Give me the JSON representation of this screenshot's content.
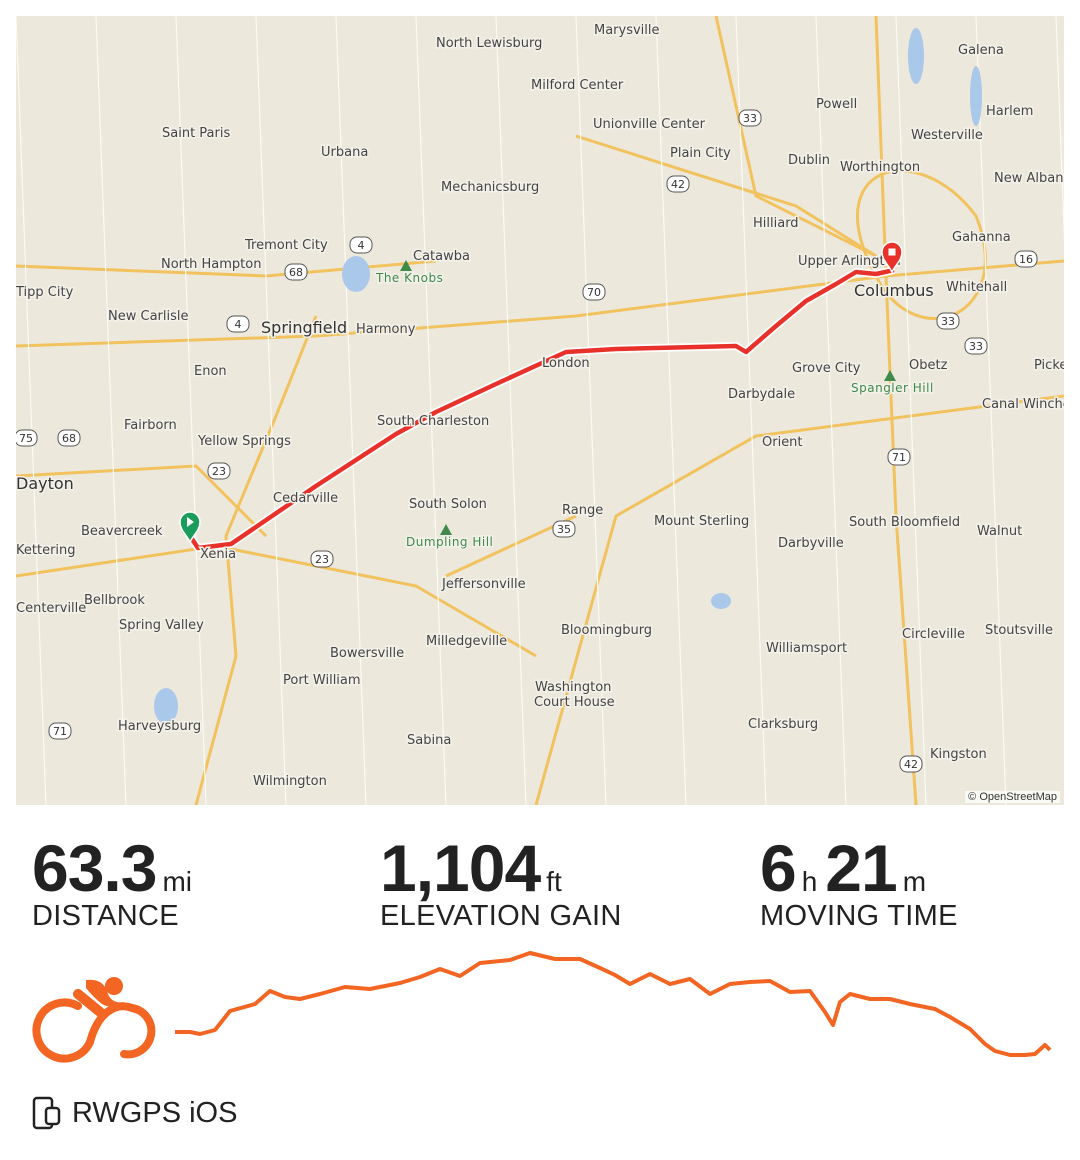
{
  "map": {
    "attribution": "© OpenStreetMap",
    "route_color": "#e8312a",
    "start_marker_color": "#1a9c5b",
    "end_marker_color": "#e8312a",
    "places": [
      "Marysville",
      "North Lewisburg",
      "Milford Center",
      "Unionville Center",
      "Galena",
      "Harlem",
      "Powell",
      "Westerville",
      "Dublin",
      "Worthington",
      "New Albany",
      "Plain City",
      "Saint Paris",
      "Urbana",
      "Mechanicsburg",
      "Hilliard",
      "Gahanna",
      "Tremont City",
      "Catawba",
      "North Hampton",
      "Upper Arlington",
      "Columbus",
      "Whitehall",
      "Tipp City",
      "New Carlisle",
      "Springfield",
      "Harmony",
      "London",
      "Grove City",
      "Obetz",
      "Enon",
      "Darbydale",
      "Fairborn",
      "Yellow Springs",
      "South Charleston",
      "Orient",
      "Canal Winchester",
      "Cedarville",
      "South Solon",
      "Range",
      "Mount Sterling",
      "Darbyville",
      "South Bloomfield",
      "Walnut",
      "Beavercreek",
      "Xenia",
      "Kettering",
      "Jeffersonville",
      "Bellbrook",
      "Centerville",
      "Spring Valley",
      "Bloomingburg",
      "Milledgeville",
      "Bowersville",
      "Williamsport",
      "Circleville",
      "Stoutsville",
      "Port William",
      "Washington",
      "Court House",
      "Harveysburg",
      "Sabina",
      "Clarksburg",
      "Kingston",
      "Wilmington",
      "Dayton",
      "Picke"
    ],
    "peaks": [
      "The Knobs",
      "Dumpling Hill",
      "Spangler Hill"
    ],
    "shields": [
      "33",
      "42",
      "4",
      "68",
      "70",
      "16",
      "33",
      "33",
      "4",
      "75",
      "68",
      "23",
      "71",
      "35",
      "23",
      "42",
      "71"
    ]
  },
  "stats": [
    {
      "value": "63.3",
      "unit": "mi",
      "label": "DISTANCE"
    },
    {
      "value": "1,104",
      "unit": "ft",
      "label": "ELEVATION GAIN"
    },
    {
      "value_h": "6",
      "unit_h": "h",
      "value_m": "21",
      "unit_m": "m",
      "label": "MOVING TIME"
    }
  ],
  "activity": {
    "icon": "cycling-icon",
    "color": "#f26522"
  },
  "profile": {
    "color": "#f26522"
  },
  "device": {
    "icon": "phone-watch-icon",
    "label": "RWGPS iOS"
  }
}
